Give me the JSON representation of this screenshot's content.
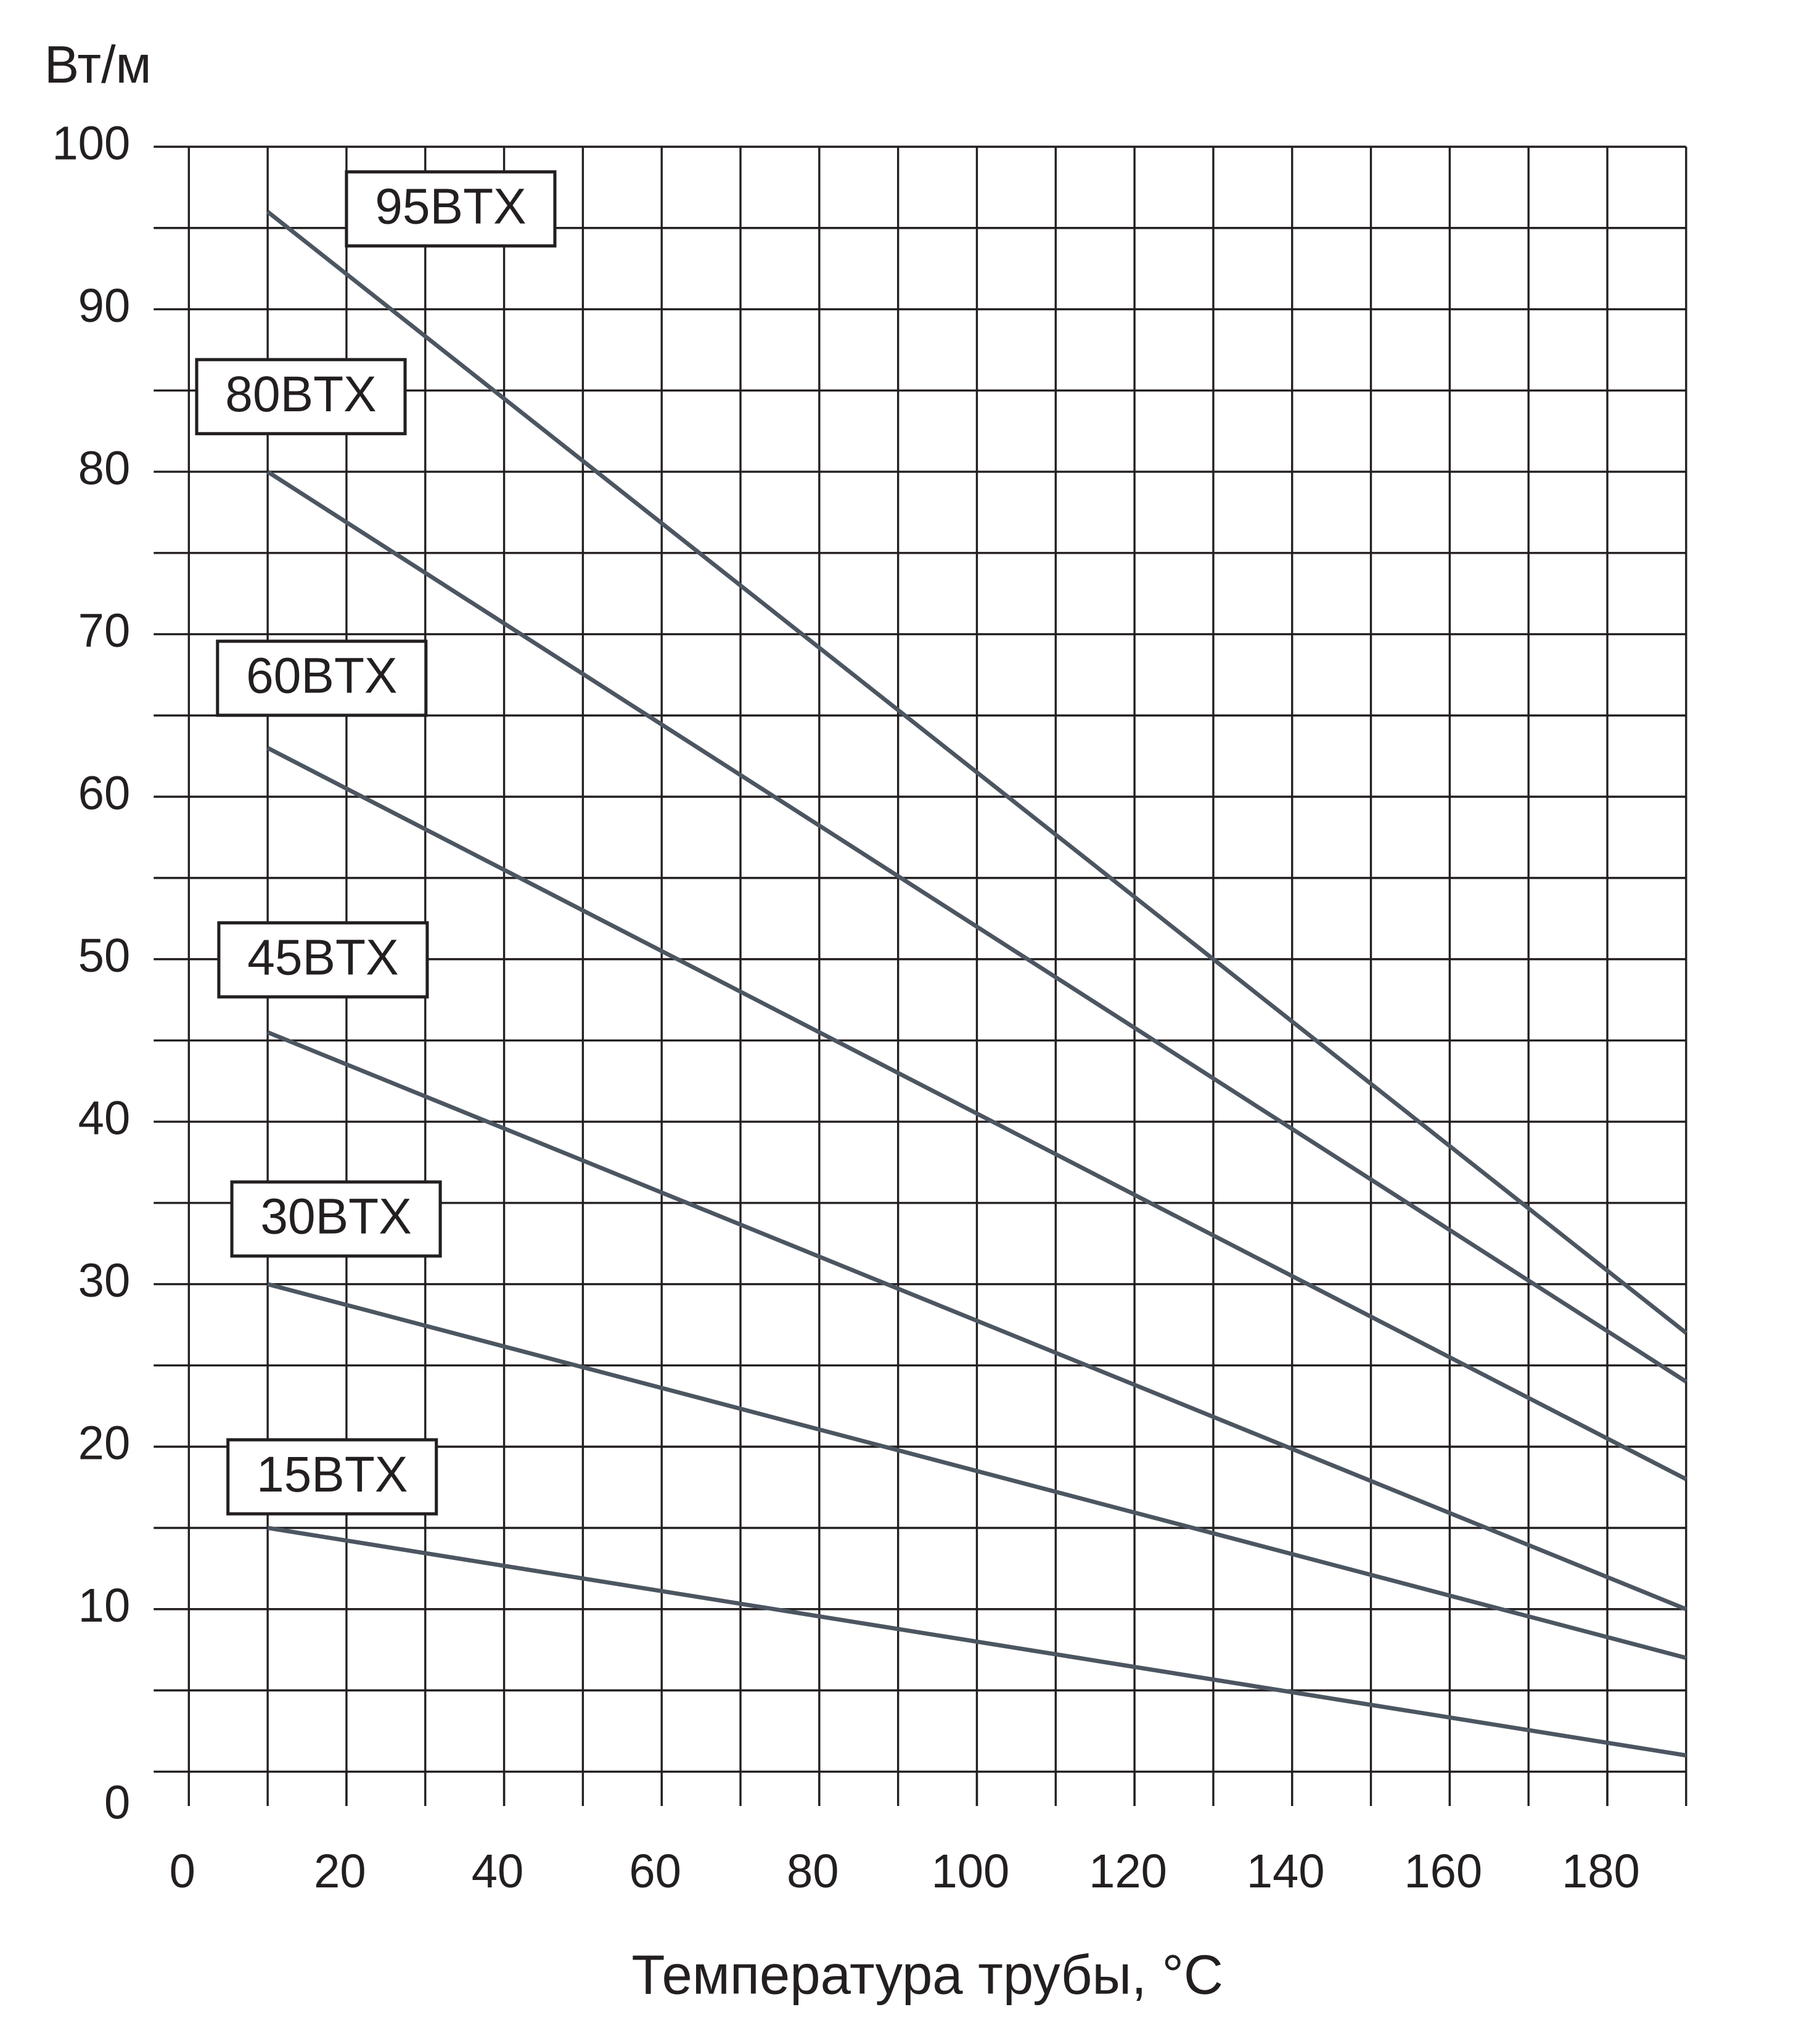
{
  "chart_data": {
    "type": "line",
    "y_axis_label": "Вт/м",
    "x_axis_label": "Температура трубы, °C",
    "x": [
      10,
      190
    ],
    "series": [
      {
        "name": "95BTX",
        "color": "#4c5661",
        "values": [
          96,
          27
        ]
      },
      {
        "name": "80BTX",
        "color": "#4c5661",
        "values": [
          80,
          24
        ]
      },
      {
        "name": "60BTX",
        "color": "#4c5661",
        "values": [
          63,
          18
        ]
      },
      {
        "name": "45BTX",
        "color": "#4c5661",
        "values": [
          45.5,
          10
        ]
      },
      {
        "name": "30BTX",
        "color": "#4c5661",
        "values": [
          30,
          7
        ]
      },
      {
        "name": "15BTX",
        "color": "#4c5661",
        "values": [
          15,
          1
        ]
      }
    ],
    "xlim": [
      0,
      190
    ],
    "ylim": [
      0,
      100
    ],
    "xticks": [
      0,
      20,
      40,
      60,
      80,
      100,
      120,
      140,
      160,
      180
    ],
    "yticks": [
      0,
      10,
      20,
      30,
      40,
      50,
      60,
      70,
      80,
      90,
      100
    ],
    "x_grid": [
      10,
      20,
      30,
      40,
      50,
      60,
      70,
      80,
      90,
      100,
      110,
      120,
      130,
      140,
      150,
      160,
      170,
      180,
      190
    ],
    "y_grid": [
      0,
      5,
      10,
      15,
      20,
      25,
      30,
      35,
      40,
      45,
      50,
      55,
      60,
      65,
      70,
      75,
      80,
      85,
      90,
      95,
      100
    ],
    "grid": true
  }
}
